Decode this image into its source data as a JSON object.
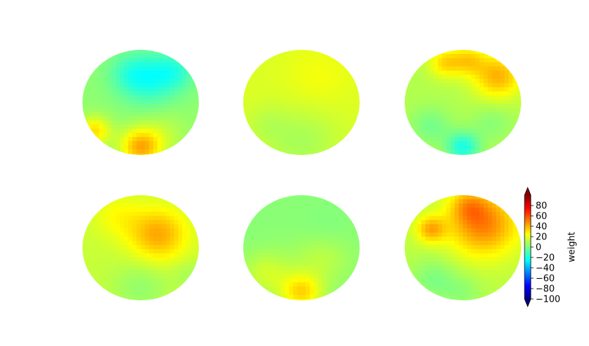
{
  "chart_data": {
    "type": "heatmap",
    "title": "",
    "layout": {
      "rows": 2,
      "cols": 3
    },
    "colormap": "jet",
    "colorbar": {
      "label": "weight",
      "min": -100,
      "max": 100,
      "extend": "both",
      "ticks": [
        80,
        60,
        40,
        20,
        0,
        -20,
        -40,
        -60,
        -80,
        -100
      ],
      "tick_labels": [
        "80",
        "60",
        "40",
        "20",
        "0",
        "−20",
        "−40",
        "−60",
        "−80",
        "−100"
      ]
    },
    "maps": [
      {
        "name": "",
        "base": 3,
        "blobs": [
          {
            "u": 0.15,
            "v": 0.45,
            "r": 0.35,
            "w": -22
          },
          {
            "u": -0.2,
            "v": 0.55,
            "r": 0.25,
            "w": -10
          },
          {
            "u": 0.0,
            "v": -0.85,
            "r": 0.25,
            "w": 38
          },
          {
            "u": -0.8,
            "v": -0.55,
            "r": 0.2,
            "w": 28
          },
          {
            "u": 0.4,
            "v": -0.6,
            "r": 0.3,
            "w": 8
          },
          {
            "u": 0.6,
            "v": 0.6,
            "r": 0.25,
            "w": -14
          }
        ]
      },
      {
        "name": "",
        "base": 18,
        "blobs": [
          {
            "u": 0.0,
            "v": -0.75,
            "r": 0.45,
            "w": -10
          },
          {
            "u": -0.6,
            "v": -0.4,
            "r": 0.25,
            "w": -5
          },
          {
            "u": 0.3,
            "v": 0.5,
            "r": 0.4,
            "w": 5
          }
        ]
      },
      {
        "name": "",
        "base": 10,
        "blobs": [
          {
            "u": 0.6,
            "v": 0.5,
            "r": 0.3,
            "w": 30
          },
          {
            "u": -0.3,
            "v": 0.75,
            "r": 0.2,
            "w": 22
          },
          {
            "u": 0.1,
            "v": 0.8,
            "r": 0.2,
            "w": 20
          },
          {
            "u": -0.55,
            "v": -0.45,
            "r": 0.25,
            "w": -12
          },
          {
            "u": 0.0,
            "v": -0.85,
            "r": 0.2,
            "w": -30
          },
          {
            "u": 0.5,
            "v": -0.4,
            "r": 0.25,
            "w": -8
          }
        ]
      },
      {
        "name": "",
        "base": 14,
        "blobs": [
          {
            "u": 0.3,
            "v": 0.25,
            "r": 0.35,
            "w": 28
          },
          {
            "u": -0.4,
            "v": 0.6,
            "r": 0.3,
            "w": 10
          },
          {
            "u": 0.0,
            "v": -0.75,
            "r": 0.35,
            "w": -10
          },
          {
            "u": 0.85,
            "v": -0.5,
            "r": 0.2,
            "w": -6
          }
        ]
      },
      {
        "name": "",
        "base": 2,
        "blobs": [
          {
            "u": 0.0,
            "v": -0.85,
            "r": 0.25,
            "w": 30
          },
          {
            "u": -0.6,
            "v": -0.5,
            "r": 0.3,
            "w": 14
          },
          {
            "u": 0.35,
            "v": -0.2,
            "r": 0.35,
            "w": 10
          },
          {
            "u": 0.4,
            "v": 0.3,
            "r": 0.3,
            "w": -3
          }
        ]
      },
      {
        "name": "",
        "base": 12,
        "blobs": [
          {
            "u": 0.35,
            "v": 0.45,
            "r": 0.42,
            "w": 38
          },
          {
            "u": 0.1,
            "v": 0.8,
            "r": 0.22,
            "w": 18
          },
          {
            "u": -0.55,
            "v": 0.35,
            "r": 0.18,
            "w": 28
          },
          {
            "u": -0.5,
            "v": -0.6,
            "r": 0.28,
            "w": -12
          },
          {
            "u": 0.0,
            "v": -0.85,
            "r": 0.25,
            "w": -8
          }
        ]
      }
    ]
  }
}
